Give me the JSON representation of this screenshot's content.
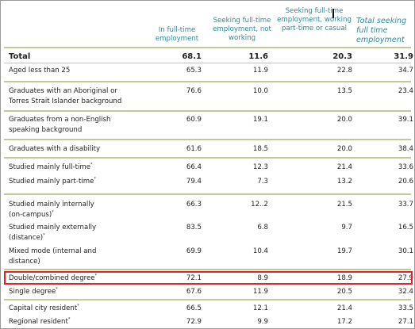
{
  "headers": [
    "In full-time employment",
    "Seeking full-time employment, not working",
    "Seeking full-time employment, working part-time or casual",
    "Total seeking full time employment"
  ],
  "rows": [
    {
      "label": "Total",
      "sup": "",
      "v1": "68.1",
      "v2": "11.6",
      "v3": "20.3",
      "v4": "31.9"
    },
    {
      "label": "Aged less than 25",
      "sup": "",
      "v1": "65.3",
      "v2": "11.9",
      "v3": "22.8",
      "v4": "34.7"
    },
    {
      "label": "Graduates with an Aboriginal or",
      "label2": "Torres Strait Islander background",
      "sup": "",
      "v1": "76.6",
      "v2": "10.0",
      "v3": "13.5",
      "v4": "23.4"
    },
    {
      "label": "Graduates from a non-English",
      "label2": "speaking background",
      "sup": "",
      "v1": "60.9",
      "v2": "19.1",
      "v3": "20.0",
      "v4": "39.1"
    },
    {
      "label": "Graduates with a disability",
      "sup": "",
      "v1": "61.6",
      "v2": "18.5",
      "v3": "20.0",
      "v4": "38.4"
    },
    {
      "label": "Studied mainly full-time",
      "sup": "*",
      "v1": "66.4",
      "v2": "12.3",
      "v3": "21.4",
      "v4": "33.6"
    },
    {
      "label": "Studied mainly part-time",
      "sup": "*",
      "v1": "79.4",
      "v2": "7.3",
      "v3": "13.2",
      "v4": "20.6"
    },
    {
      "label": "Studied mainly internally",
      "label2": "(on-campus)",
      "sup": "*",
      "v1": "66.3",
      "v2": "12..2",
      "v3": "21.5",
      "v4": "33.7"
    },
    {
      "label": "Studied mainly externally",
      "label2": "(distance)",
      "sup": "*",
      "v1": "83.5",
      "v2": "6.8",
      "v3": "9.7",
      "v4": "16.5"
    },
    {
      "label": "Mixed mode (internal and",
      "label2": "distance)",
      "sup": "",
      "v1": "69.9",
      "v2": "10.4",
      "v3": "19.7",
      "v4": "30.1"
    },
    {
      "label": "Double/combined degree",
      "sup": "*",
      "v1": "72.1",
      "v2": "8.9",
      "v3": "18.9",
      "v4": "27.9"
    },
    {
      "label": "Single degree",
      "sup": "*",
      "v1": "67.6",
      "v2": "11.9",
      "v3": "20.5",
      "v4": "32.4"
    },
    {
      "label": "Capital city resident",
      "sup": "*",
      "v1": "66.5",
      "v2": "12.1",
      "v3": "21.4",
      "v4": "33.5"
    },
    {
      "label": "Regional resident",
      "sup": "*",
      "v1": "72.9",
      "v2": "9.9",
      "v3": "17.2",
      "v4": "27.1"
    }
  ],
  "colors": {
    "header_text": "#2f8a96",
    "rule": "#c3c89a",
    "highlight": "#e0242a"
  }
}
